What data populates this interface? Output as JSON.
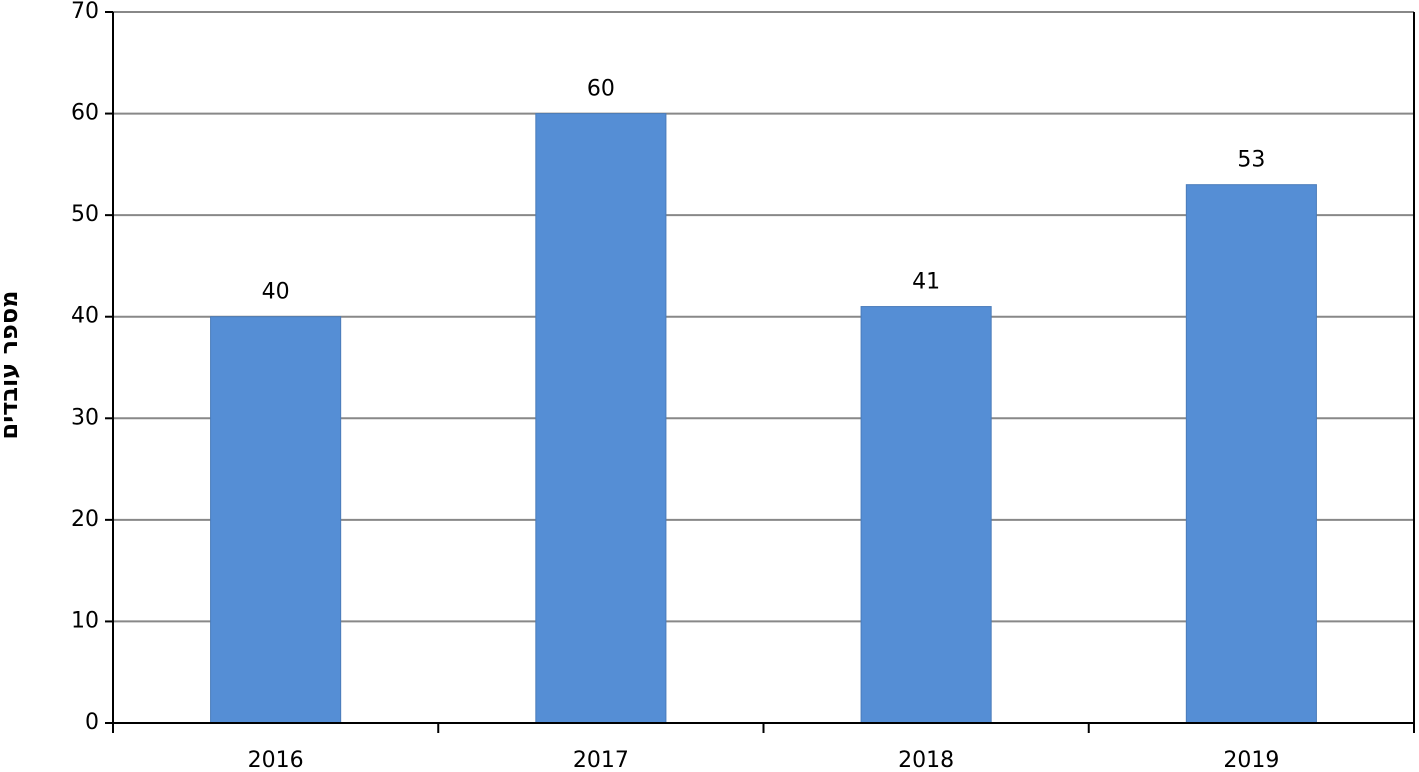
{
  "chart_data": {
    "type": "bar",
    "y_label": "מספר עובדים",
    "categories": [
      "2016",
      "2017",
      "2018",
      "2019"
    ],
    "values": [
      40,
      60,
      41,
      53
    ],
    "color": "#558ed5",
    "ylim": [
      0,
      70
    ],
    "yticks": [
      0,
      10,
      20,
      30,
      40,
      50,
      60,
      70
    ],
    "grid": true
  }
}
